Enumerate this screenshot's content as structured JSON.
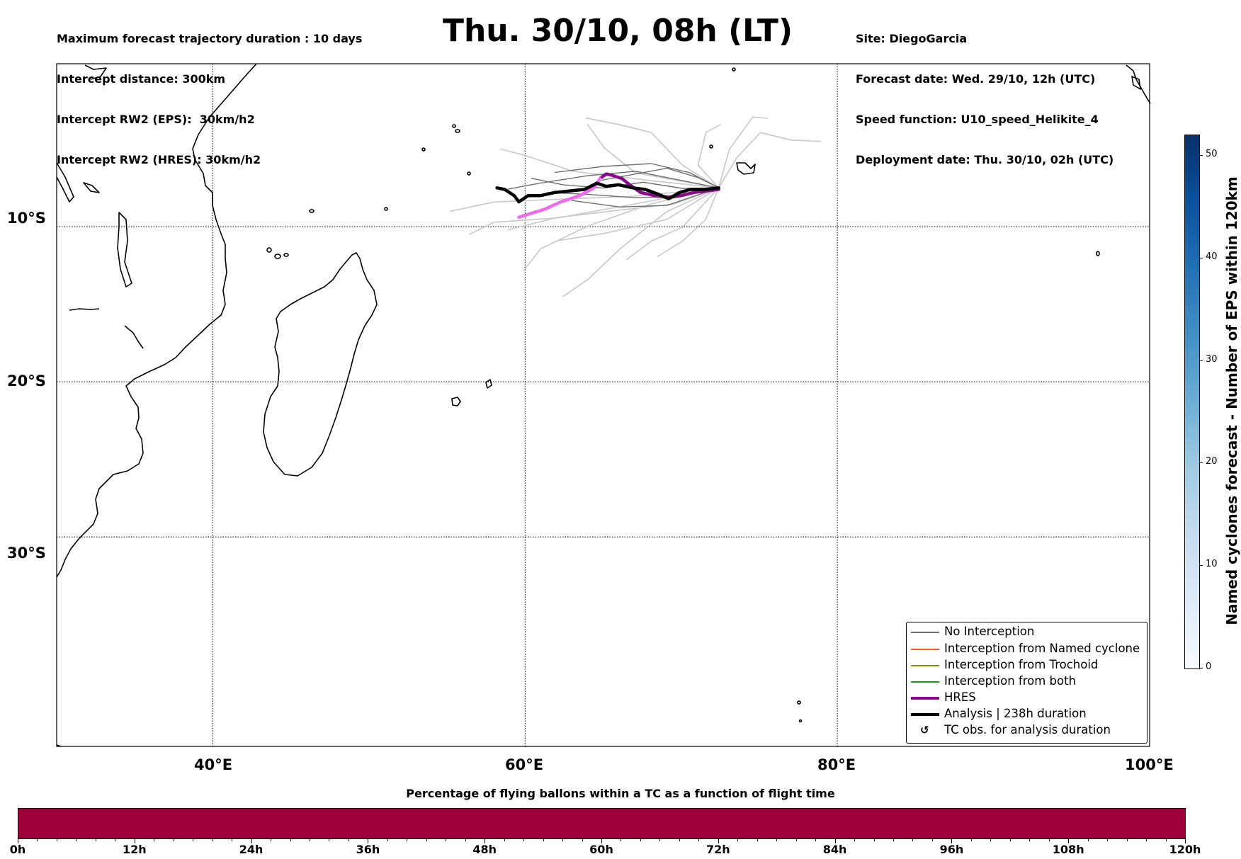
{
  "header_left": [
    "Maximum forecast trajectory duration : 10 days",
    "Intercept distance: 300km",
    "Intercept RW2 (EPS):  30km/h2",
    "Intercept RW2 (HRES): 30km/h2"
  ],
  "title": "Thu. 30/10, 08h (LT)",
  "header_right": [
    "Site: DiegoGarcia",
    "Forecast date: Wed. 29/10, 12h (UTC)",
    "Speed function: U10_speed_Helikite_4",
    "Deployment date: Thu. 30/10, 02h (UTC)"
  ],
  "map": {
    "lon_range": [
      30,
      100
    ],
    "lat_range": [
      -43.5,
      0.5
    ],
    "lat_labels": [
      "10°S",
      "20°S",
      "30°S"
    ],
    "lon_labels": [
      "40°E",
      "60°E",
      "80°E",
      "100°E"
    ],
    "gridlines": "dotted",
    "colors": {
      "eps_light": "#c8c8c8",
      "eps_dark": "#707070",
      "hres": "#8b0a8b",
      "hres_early": "#ee6aee",
      "analysis": "#000000",
      "coast": "#000000"
    },
    "hres_track": [
      [
        72.4,
        -7.6
      ],
      [
        71.6,
        -7.7
      ],
      [
        70.8,
        -7.8
      ],
      [
        70.0,
        -8.0
      ],
      [
        69.2,
        -8.1
      ],
      [
        68.3,
        -8.0
      ],
      [
        67.4,
        -7.8
      ],
      [
        66.7,
        -7.3
      ],
      [
        66.2,
        -6.9
      ],
      [
        65.6,
        -6.7
      ],
      [
        65.2,
        -6.6
      ],
      [
        64.8,
        -6.9
      ],
      [
        64.4,
        -7.5
      ],
      [
        63.5,
        -8.0
      ],
      [
        62.3,
        -8.4
      ],
      [
        61.2,
        -8.9
      ],
      [
        60.2,
        -9.2
      ],
      [
        59.6,
        -9.4
      ]
    ],
    "analysis_track": [
      [
        72.4,
        -7.5
      ],
      [
        71.5,
        -7.6
      ],
      [
        70.6,
        -7.6
      ],
      [
        69.9,
        -7.8
      ],
      [
        69.2,
        -8.2
      ],
      [
        68.5,
        -7.9
      ],
      [
        67.7,
        -7.6
      ],
      [
        66.9,
        -7.5
      ],
      [
        66.0,
        -7.3
      ],
      [
        65.2,
        -7.4
      ],
      [
        64.6,
        -7.2
      ],
      [
        63.8,
        -7.6
      ],
      [
        62.8,
        -7.7
      ],
      [
        61.9,
        -7.8
      ],
      [
        61.0,
        -8.0
      ],
      [
        60.2,
        -8.0
      ],
      [
        59.6,
        -8.4
      ],
      [
        59.3,
        -8.0
      ],
      [
        58.7,
        -7.6
      ],
      [
        58.2,
        -7.5
      ]
    ],
    "eps_tracks": [
      {
        "tone": "light",
        "pts": [
          [
            72.4,
            -7.5
          ],
          [
            73.5,
            -5.5
          ],
          [
            75.0,
            -4.0
          ],
          [
            77.0,
            -4.5
          ],
          [
            79.0,
            -4.5
          ]
        ]
      },
      {
        "tone": "light",
        "pts": [
          [
            72.4,
            -7.5
          ],
          [
            73.0,
            -5.0
          ],
          [
            74.5,
            -3.0
          ],
          [
            75.5,
            -3.1
          ]
        ]
      },
      {
        "tone": "light",
        "pts": [
          [
            72.4,
            -7.5
          ],
          [
            71.0,
            -6.0
          ],
          [
            71.5,
            -4.0
          ],
          [
            72.5,
            -3.5
          ]
        ]
      },
      {
        "tone": "light",
        "pts": [
          [
            72.4,
            -7.5
          ],
          [
            70.0,
            -6.0
          ],
          [
            68.0,
            -4.0
          ],
          [
            66.0,
            -3.5
          ],
          [
            64.0,
            -3.0
          ]
        ]
      },
      {
        "tone": "light",
        "pts": [
          [
            72.4,
            -7.5
          ],
          [
            69.0,
            -9.0
          ],
          [
            66.0,
            -11.5
          ],
          [
            64.0,
            -13.5
          ],
          [
            62.5,
            -14.5
          ]
        ]
      },
      {
        "tone": "light",
        "pts": [
          [
            72.4,
            -7.5
          ],
          [
            68.0,
            -8.5
          ],
          [
            64.0,
            -10.0
          ],
          [
            61.0,
            -11.5
          ],
          [
            60.0,
            -12.8
          ]
        ]
      },
      {
        "tone": "light",
        "pts": [
          [
            72.4,
            -7.5
          ],
          [
            67.0,
            -8.5
          ],
          [
            62.0,
            -9.5
          ],
          [
            58.0,
            -9.8
          ],
          [
            56.5,
            -10.5
          ]
        ]
      },
      {
        "tone": "light",
        "pts": [
          [
            72.4,
            -7.5
          ],
          [
            67.0,
            -8.0
          ],
          [
            62.0,
            -8.3
          ],
          [
            58.0,
            -8.5
          ],
          [
            55.3,
            -9.0
          ]
        ]
      },
      {
        "tone": "light",
        "pts": [
          [
            72.4,
            -7.5
          ],
          [
            68.0,
            -7.0
          ],
          [
            63.0,
            -6.5
          ],
          [
            60.0,
            -5.5
          ],
          [
            58.5,
            -5.0
          ]
        ]
      },
      {
        "tone": "light",
        "pts": [
          [
            72.4,
            -7.5
          ],
          [
            70.0,
            -10.0
          ],
          [
            68.0,
            -11.0
          ],
          [
            66.5,
            -12.2
          ]
        ]
      },
      {
        "tone": "light",
        "pts": [
          [
            72.4,
            -7.5
          ],
          [
            71.5,
            -9.5
          ],
          [
            70.0,
            -11.0
          ],
          [
            68.5,
            -12.0
          ]
        ]
      },
      {
        "tone": "light",
        "pts": [
          [
            72.4,
            -7.5
          ],
          [
            69.0,
            -9.5
          ],
          [
            65.0,
            -10.5
          ],
          [
            62.0,
            -11.0
          ]
        ]
      },
      {
        "tone": "light",
        "pts": [
          [
            72.4,
            -7.5
          ],
          [
            67.0,
            -6.5
          ],
          [
            65.0,
            -5.0
          ],
          [
            64.0,
            -3.5
          ]
        ]
      },
      {
        "tone": "light",
        "pts": [
          [
            72.4,
            -7.5
          ],
          [
            69.5,
            -8.5
          ],
          [
            66.0,
            -9.0
          ],
          [
            62.0,
            -9.5
          ],
          [
            59.0,
            -10.2
          ]
        ]
      },
      {
        "tone": "dark",
        "pts": [
          [
            72.4,
            -7.5
          ],
          [
            70.0,
            -7.0
          ],
          [
            67.0,
            -6.5
          ],
          [
            64.0,
            -6.8
          ],
          [
            61.0,
            -7.2
          ],
          [
            59.0,
            -7.5
          ]
        ]
      },
      {
        "tone": "dark",
        "pts": [
          [
            72.4,
            -7.5
          ],
          [
            70.0,
            -8.0
          ],
          [
            67.0,
            -8.2
          ],
          [
            64.0,
            -8.0
          ],
          [
            61.5,
            -7.8
          ]
        ]
      },
      {
        "tone": "dark",
        "pts": [
          [
            72.4,
            -7.5
          ],
          [
            70.5,
            -6.5
          ],
          [
            68.0,
            -6.0
          ],
          [
            65.0,
            -6.2
          ],
          [
            62.0,
            -6.5
          ]
        ]
      },
      {
        "tone": "dark",
        "pts": [
          [
            72.4,
            -7.5
          ],
          [
            69.0,
            -8.6
          ],
          [
            66.0,
            -8.8
          ],
          [
            63.0,
            -8.4
          ]
        ]
      },
      {
        "tone": "dark",
        "pts": [
          [
            72.4,
            -7.5
          ],
          [
            70.0,
            -7.5
          ],
          [
            67.5,
            -7.2
          ],
          [
            65.0,
            -7.6
          ],
          [
            62.5,
            -7.3
          ],
          [
            60.5,
            -6.8
          ]
        ]
      },
      {
        "tone": "dark",
        "pts": [
          [
            72.4,
            -7.5
          ],
          [
            71.0,
            -6.8
          ],
          [
            69.0,
            -6.3
          ],
          [
            67.0,
            -6.7
          ],
          [
            65.0,
            -7.0
          ]
        ]
      }
    ],
    "cyclone_obs_marker": "↺"
  },
  "colorbar_v": {
    "label": "Named cyclones forecast - Number of EPS within 120km",
    "ticks": [
      "0",
      "10",
      "20",
      "30",
      "40",
      "50"
    ],
    "max": 52
  },
  "colorbar_h": {
    "title": "Percentage of flying ballons within a TC as a function of flight time",
    "ticks": [
      "0h",
      "12h",
      "24h",
      "36h",
      "48h",
      "60h",
      "72h",
      "84h",
      "96h",
      "108h",
      "120h"
    ],
    "color": "#9e003a"
  },
  "legend": [
    {
      "label": "No Interception",
      "color": "#707070",
      "style": "thin"
    },
    {
      "label": "Interception from Named cyclone",
      "color": "#ff5a1e",
      "style": "thin"
    },
    {
      "label": "Interception from Trochoid",
      "color": "#8a8a00",
      "style": "thin"
    },
    {
      "label": "Interception from both",
      "color": "#1a9a1a",
      "style": "thin"
    },
    {
      "label": "HRES",
      "color": "#8b0a8b",
      "style": "thick"
    },
    {
      "label": "Analysis | 238h duration",
      "color": "#000000",
      "style": "thick"
    },
    {
      "label": "TC obs. for analysis duration",
      "color": "#000000",
      "style": "glyph"
    }
  ]
}
